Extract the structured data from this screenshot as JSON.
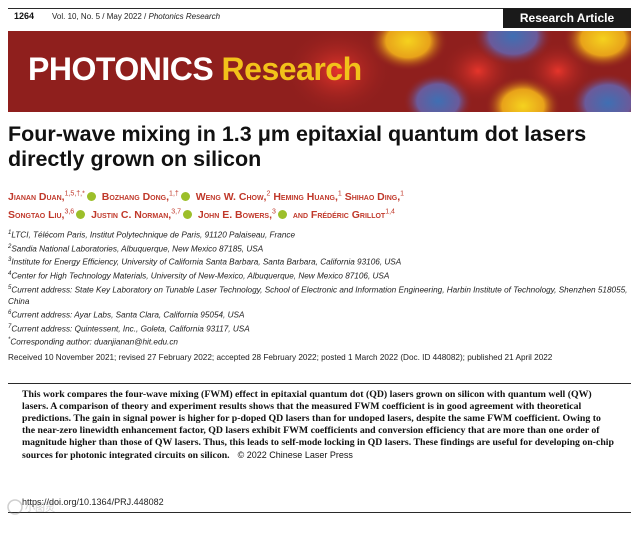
{
  "header": {
    "page_number": "1264",
    "journal_line": "Vol. 10, No. 5 / May 2022 / ",
    "journal_name": "Photonics Research",
    "article_type": "Research Article"
  },
  "banner": {
    "logo_word1": "PHOTONICS",
    "logo_word2": "Research",
    "colors": {
      "background": "#8f1f1d",
      "word1": "#ffffff",
      "word2": "#f2c21a",
      "blob_blue": "#3f6fb3",
      "blob_yellow": "#f5d21e"
    }
  },
  "title": "Four-wave mixing in 1.3 μm epitaxial quantum dot lasers directly grown on silicon",
  "authors": [
    {
      "name": "Jianan Duan,",
      "sup": "1,5,†,*",
      "orcid": true
    },
    {
      "name": "Bozhang Dong,",
      "sup": "1,†",
      "orcid": true
    },
    {
      "name": "Weng W. Chow,",
      "sup": "2",
      "orcid": false
    },
    {
      "name": "Heming Huang,",
      "sup": "1",
      "orcid": false
    },
    {
      "name": "Shihao Ding,",
      "sup": "1",
      "orcid": false
    },
    {
      "name": "Songtao Liu,",
      "sup": "3,6",
      "orcid": true
    },
    {
      "name": "Justin C. Norman,",
      "sup": "3,7",
      "orcid": true
    },
    {
      "name": "John E. Bowers,",
      "sup": "3",
      "orcid": true
    },
    {
      "name": "and Frédéric Grillot",
      "sup": "1,4",
      "orcid": false
    }
  ],
  "affiliations": [
    {
      "sup": "1",
      "text": "LTCI, Télécom Paris, Institut Polytechnique de Paris, 91120 Palaiseau, France"
    },
    {
      "sup": "2",
      "text": "Sandia National Laboratories, Albuquerque, New Mexico 87185, USA"
    },
    {
      "sup": "3",
      "text": "Institute for Energy Efficiency, University of California Santa Barbara, Santa Barbara, California 93106, USA"
    },
    {
      "sup": "4",
      "text": "Center for High Technology Materials, University of New-Mexico, Albuquerque, New Mexico 87106, USA"
    },
    {
      "sup": "5",
      "text": "Current address: State Key Laboratory on Tunable Laser Technology, School of Electronic and Information Engineering, Harbin Institute of Technology, Shenzhen 518055, China"
    },
    {
      "sup": "6",
      "text": "Current address: Ayar Labs, Santa Clara, California 95054, USA"
    },
    {
      "sup": "7",
      "text": "Current address: Quintessent, Inc., Goleta, California 93117, USA"
    },
    {
      "sup": "*",
      "text": "Corresponding author: duanjianan@hit.edu.cn"
    }
  ],
  "dates": "Received 10 November 2021; revised 27 February 2022; accepted 28 February 2022; posted 1 March 2022 (Doc. ID 448082); published 21 April 2022",
  "abstract": "This work compares the four-wave mixing (FWM) effect in epitaxial quantum dot (QD) lasers grown on silicon with quantum well (QW) lasers. A comparison of theory and experiment results shows that the measured FWM coefficient is in good agreement with theoretical predictions. The gain in signal power is higher for p-doped QD lasers than for undoped lasers, despite the same FWM coefficient. Owing to the near-zero linewidth enhancement factor, QD lasers exhibit FWM coefficients and conversion efficiency that are more than one order of magnitude higher than those of QW lasers. Thus, this leads to self-mode locking in QD lasers. These findings are useful for developing on-chip sources for photonic integrated circuits on silicon.",
  "copyright": "© 2022 Chinese Laser Press",
  "doi": "https://doi.org/10.1364/PRJ.448082",
  "watermark": "小图灵"
}
